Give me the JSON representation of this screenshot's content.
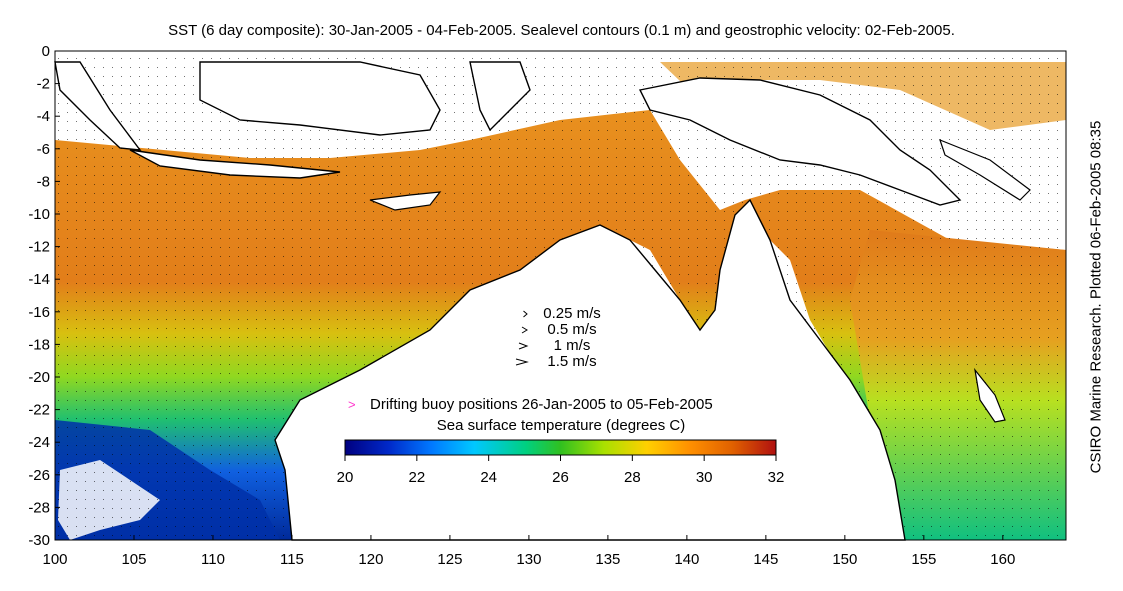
{
  "title": "SST (6 day composite): 30-Jan-2005 - 04-Feb-2005. Sealevel contours (0.1 m) and geostrophic velocity: 02-Feb-2005.",
  "credit": "CSIRO Marine Research. Plotted 06-Feb-2005 08:35",
  "axes": {
    "lon_ticks": [
      100,
      105,
      110,
      115,
      120,
      125,
      130,
      135,
      140,
      145,
      150,
      155,
      160
    ],
    "lat_ticks": [
      0,
      -2,
      -4,
      -6,
      -8,
      -10,
      -12,
      -14,
      -16,
      -18,
      -20,
      -22,
      -24,
      -26,
      -28,
      -30
    ],
    "lon_range": [
      100,
      164
    ],
    "lat_range": [
      -30,
      0
    ]
  },
  "velocity_legend": [
    {
      "label": "0.25 m/s",
      "speed": 0.25
    },
    {
      "label": "0.5 m/s",
      "speed": 0.5
    },
    {
      "label": "1 m/s",
      "speed": 1
    },
    {
      "label": "1.5 m/s",
      "speed": 1.5
    }
  ],
  "buoy_legend": {
    "marker": ">",
    "label": "Drifting buoy positions 26-Jan-2005 to 05-Feb-2005",
    "color": "#ff33cc"
  },
  "colorbar": {
    "title": "Sea surface temperature (degrees C)",
    "ticks": [
      20,
      22,
      24,
      26,
      28,
      30,
      32
    ],
    "range": [
      20,
      32
    ],
    "colors": [
      "#000080",
      "#0028c8",
      "#0078ff",
      "#00c8ff",
      "#00d080",
      "#30c020",
      "#a8e000",
      "#ffd000",
      "#ff9000",
      "#e06000",
      "#b01010"
    ]
  }
}
